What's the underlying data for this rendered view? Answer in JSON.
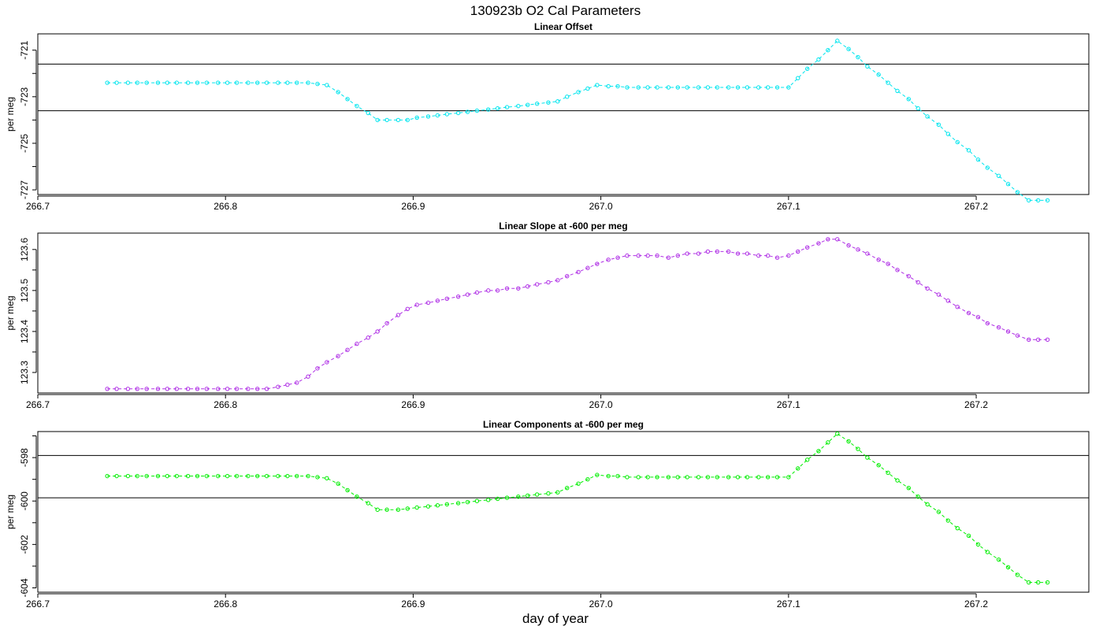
{
  "title": "130923b   O2 Cal Parameters",
  "xlabel": "day of year",
  "chart_data": [
    {
      "type": "line",
      "title": "Linear Offset",
      "ylabel": "per meg",
      "color": "#00e5ee",
      "xlim": [
        266.7,
        267.26
      ],
      "ylim": [
        -727.2,
        -720.3
      ],
      "xticks": [
        "266.7",
        "266.8",
        "266.9",
        "267.0",
        "267.1",
        "267.2"
      ],
      "yticks": [
        -721,
        -723,
        -725,
        -727
      ],
      "yticks_minor": [
        -722,
        -724,
        -726
      ],
      "hlines": [
        -721.6,
        -723.6
      ],
      "x": [
        266.737,
        266.742,
        266.748,
        266.753,
        266.758,
        266.764,
        266.769,
        266.774,
        266.78,
        266.785,
        266.79,
        266.796,
        266.801,
        266.806,
        266.812,
        266.817,
        266.822,
        266.828,
        266.833,
        266.838,
        266.844,
        266.849,
        266.854,
        266.86,
        266.865,
        266.87,
        266.876,
        266.881,
        266.886,
        266.892,
        266.897,
        266.902,
        266.908,
        266.913,
        266.918,
        266.924,
        266.929,
        266.934,
        266.94,
        266.945,
        266.95,
        266.956,
        266.961,
        266.966,
        266.972,
        266.977,
        266.982,
        266.988,
        266.993,
        266.998,
        267.004,
        267.009,
        267.014,
        267.02,
        267.025,
        267.03,
        267.036,
        267.041,
        267.046,
        267.052,
        267.057,
        267.062,
        267.068,
        267.073,
        267.078,
        267.084,
        267.089,
        267.094,
        267.1,
        267.105,
        267.11,
        267.116,
        267.121,
        267.126,
        267.132,
        267.137,
        267.142,
        267.148,
        267.153,
        267.158,
        267.164,
        267.169,
        267.174,
        267.18,
        267.185,
        267.19,
        267.196,
        267.201,
        267.206,
        267.212,
        267.217,
        267.222,
        267.228,
        267.233,
        267.238
      ],
      "y": [
        -722.4,
        -722.4,
        -722.4,
        -722.4,
        -722.4,
        -722.4,
        -722.4,
        -722.4,
        -722.4,
        -722.4,
        -722.4,
        -722.4,
        -722.4,
        -722.4,
        -722.4,
        -722.4,
        -722.4,
        -722.4,
        -722.4,
        -722.4,
        -722.4,
        -722.45,
        -722.5,
        -722.8,
        -723.1,
        -723.4,
        -723.7,
        -724.0,
        -724.0,
        -724.0,
        -724.0,
        -723.9,
        -723.85,
        -723.8,
        -723.75,
        -723.7,
        -723.65,
        -723.6,
        -723.55,
        -723.5,
        -723.45,
        -723.4,
        -723.35,
        -723.3,
        -723.25,
        -723.2,
        -723.0,
        -722.8,
        -722.65,
        -722.5,
        -722.55,
        -722.55,
        -722.6,
        -722.6,
        -722.6,
        -722.6,
        -722.6,
        -722.6,
        -722.6,
        -722.6,
        -722.6,
        -722.6,
        -722.6,
        -722.6,
        -722.6,
        -722.6,
        -722.6,
        -722.6,
        -722.6,
        -722.2,
        -721.8,
        -721.4,
        -721.0,
        -720.6,
        -720.95,
        -721.3,
        -721.7,
        -722.05,
        -722.4,
        -722.75,
        -723.1,
        -723.5,
        -723.85,
        -724.2,
        -724.6,
        -724.95,
        -725.3,
        -725.7,
        -726.05,
        -726.4,
        -726.75,
        -727.1,
        -727.45,
        -727.45,
        -727.45
      ]
    },
    {
      "type": "line",
      "title": "Linear Slope at -600 per meg",
      "ylabel": "per meg",
      "color": "#b031e6",
      "xlim": [
        266.7,
        267.26
      ],
      "ylim": [
        123.25,
        123.64
      ],
      "xticks": [
        "266.7",
        "266.8",
        "266.9",
        "267.0",
        "267.1",
        "267.2"
      ],
      "yticks": [
        123.3,
        123.4,
        123.5,
        123.6
      ],
      "yticks_minor": [
        123.35,
        123.45,
        123.55
      ],
      "hlines": [],
      "x": [
        266.737,
        266.742,
        266.748,
        266.753,
        266.758,
        266.764,
        266.769,
        266.774,
        266.78,
        266.785,
        266.79,
        266.796,
        266.801,
        266.806,
        266.812,
        266.817,
        266.822,
        266.828,
        266.833,
        266.838,
        266.844,
        266.849,
        266.854,
        266.86,
        266.865,
        266.87,
        266.876,
        266.881,
        266.886,
        266.892,
        266.897,
        266.902,
        266.908,
        266.913,
        266.918,
        266.924,
        266.929,
        266.934,
        266.94,
        266.945,
        266.95,
        266.956,
        266.961,
        266.966,
        266.972,
        266.977,
        266.982,
        266.988,
        266.993,
        266.998,
        267.004,
        267.009,
        267.014,
        267.02,
        267.025,
        267.03,
        267.036,
        267.041,
        267.046,
        267.052,
        267.057,
        267.062,
        267.068,
        267.073,
        267.078,
        267.084,
        267.089,
        267.094,
        267.1,
        267.105,
        267.11,
        267.116,
        267.121,
        267.126,
        267.132,
        267.137,
        267.142,
        267.148,
        267.153,
        267.158,
        267.164,
        267.169,
        267.174,
        267.18,
        267.185,
        267.19,
        267.196,
        267.201,
        267.206,
        267.212,
        267.217,
        267.222,
        267.228,
        267.233,
        267.238
      ],
      "y": [
        123.26,
        123.26,
        123.26,
        123.26,
        123.26,
        123.26,
        123.26,
        123.26,
        123.26,
        123.26,
        123.26,
        123.26,
        123.26,
        123.26,
        123.26,
        123.26,
        123.26,
        123.265,
        123.27,
        123.275,
        123.29,
        123.31,
        123.325,
        123.34,
        123.355,
        123.37,
        123.385,
        123.4,
        123.42,
        123.44,
        123.455,
        123.465,
        123.47,
        123.475,
        123.48,
        123.485,
        123.49,
        123.495,
        123.5,
        123.5,
        123.505,
        123.505,
        123.51,
        123.515,
        123.52,
        123.525,
        123.535,
        123.545,
        123.555,
        123.565,
        123.575,
        123.58,
        123.585,
        123.585,
        123.585,
        123.585,
        123.58,
        123.585,
        123.59,
        123.59,
        123.595,
        123.595,
        123.595,
        123.59,
        123.59,
        123.585,
        123.585,
        123.58,
        123.585,
        123.595,
        123.605,
        123.615,
        123.625,
        123.625,
        123.61,
        123.6,
        123.59,
        123.575,
        123.565,
        123.55,
        123.535,
        123.52,
        123.505,
        123.49,
        123.475,
        123.46,
        123.445,
        123.435,
        123.42,
        123.41,
        123.4,
        123.39,
        123.38,
        123.38,
        123.38
      ]
    },
    {
      "type": "line",
      "title": "Linear Components at -600 per meg",
      "ylabel": "per meg",
      "color": "#00ee00",
      "xlim": [
        266.7,
        267.26
      ],
      "ylim": [
        -604.2,
        -596.8
      ],
      "xticks": [
        "266.7",
        "266.8",
        "266.9",
        "267.0",
        "267.1",
        "267.2"
      ],
      "yticks": [
        -598,
        -600,
        -602,
        -604
      ],
      "yticks_minor": [
        -597,
        -599,
        -601,
        -603
      ],
      "hlines": [
        -597.9,
        -599.85
      ],
      "x": [
        266.737,
        266.742,
        266.748,
        266.753,
        266.758,
        266.764,
        266.769,
        266.774,
        266.78,
        266.785,
        266.79,
        266.796,
        266.801,
        266.806,
        266.812,
        266.817,
        266.822,
        266.828,
        266.833,
        266.838,
        266.844,
        266.849,
        266.854,
        266.86,
        266.865,
        266.87,
        266.876,
        266.881,
        266.886,
        266.892,
        266.897,
        266.902,
        266.908,
        266.913,
        266.918,
        266.924,
        266.929,
        266.934,
        266.94,
        266.945,
        266.95,
        266.956,
        266.961,
        266.966,
        266.972,
        266.977,
        266.982,
        266.988,
        266.993,
        266.998,
        267.004,
        267.009,
        267.014,
        267.02,
        267.025,
        267.03,
        267.036,
        267.041,
        267.046,
        267.052,
        267.057,
        267.062,
        267.068,
        267.073,
        267.078,
        267.084,
        267.089,
        267.094,
        267.1,
        267.105,
        267.11,
        267.116,
        267.121,
        267.126,
        267.132,
        267.137,
        267.142,
        267.148,
        267.153,
        267.158,
        267.164,
        267.169,
        267.174,
        267.18,
        267.185,
        267.19,
        267.196,
        267.201,
        267.206,
        267.212,
        267.217,
        267.222,
        267.228,
        267.233,
        267.238
      ],
      "y": [
        -598.85,
        -598.85,
        -598.85,
        -598.85,
        -598.85,
        -598.85,
        -598.85,
        -598.85,
        -598.85,
        -598.85,
        -598.85,
        -598.85,
        -598.85,
        -598.85,
        -598.85,
        -598.85,
        -598.85,
        -598.85,
        -598.85,
        -598.85,
        -598.85,
        -598.9,
        -598.95,
        -599.2,
        -599.5,
        -599.8,
        -600.1,
        -600.4,
        -600.4,
        -600.4,
        -600.35,
        -600.3,
        -600.25,
        -600.2,
        -600.15,
        -600.1,
        -600.05,
        -600.0,
        -599.95,
        -599.9,
        -599.85,
        -599.8,
        -599.75,
        -599.7,
        -599.65,
        -599.6,
        -599.4,
        -599.2,
        -599.0,
        -598.8,
        -598.85,
        -598.85,
        -598.9,
        -598.9,
        -598.9,
        -598.9,
        -598.9,
        -598.9,
        -598.9,
        -598.9,
        -598.9,
        -598.9,
        -598.9,
        -598.9,
        -598.9,
        -598.9,
        -598.9,
        -598.9,
        -598.9,
        -598.5,
        -598.1,
        -597.7,
        -597.3,
        -596.9,
        -597.25,
        -597.6,
        -598.0,
        -598.35,
        -598.7,
        -599.05,
        -599.4,
        -599.8,
        -600.15,
        -600.5,
        -600.9,
        -601.25,
        -601.6,
        -602.0,
        -602.35,
        -602.7,
        -603.05,
        -603.4,
        -603.75,
        -603.75,
        -603.75
      ]
    }
  ]
}
